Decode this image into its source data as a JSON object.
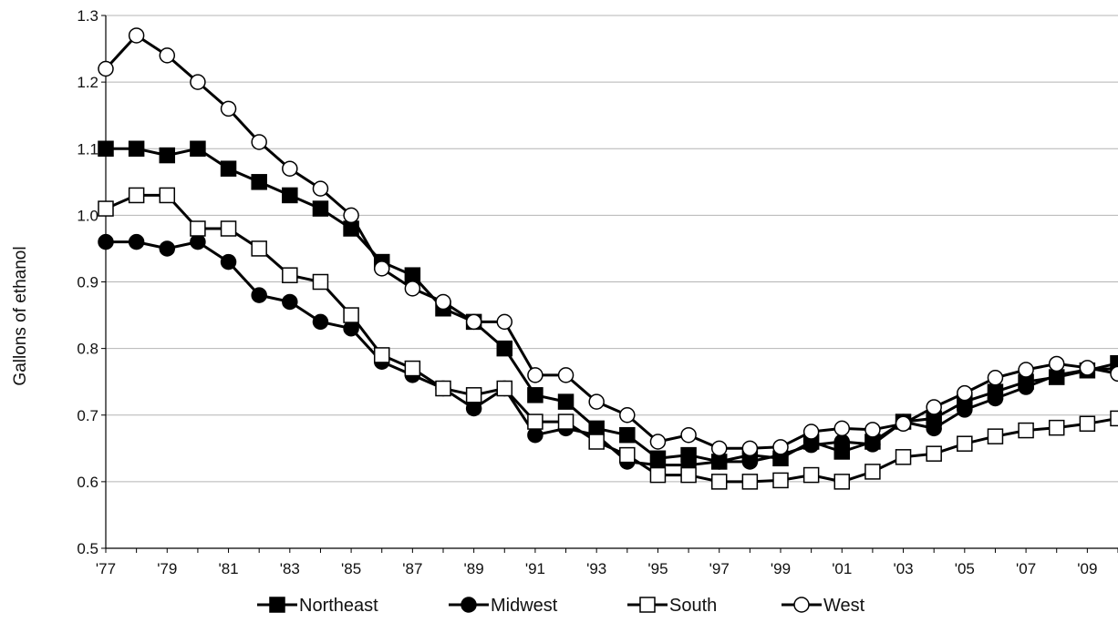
{
  "chart_data": {
    "type": "line",
    "title": "",
    "xlabel": "",
    "ylabel": "Gallons of ethanol",
    "ylim": [
      0.5,
      1.3
    ],
    "yticks": [
      "0.5",
      "0.6",
      "0.7",
      "0.8",
      "0.9",
      "1.0",
      "1.1",
      "1.2",
      "1.3"
    ],
    "xticks": [
      "'77",
      "'79",
      "'81",
      "'83",
      "'85",
      "'87",
      "'89",
      "'91",
      "'93",
      "'95",
      "'97",
      "'99",
      "'01",
      "'03",
      "'05",
      "'07",
      "'09"
    ],
    "x": [
      1977,
      1978,
      1979,
      1980,
      1981,
      1982,
      1983,
      1984,
      1985,
      1986,
      1987,
      1988,
      1989,
      1990,
      1991,
      1992,
      1993,
      1994,
      1995,
      1996,
      1997,
      1998,
      1999,
      2000,
      2001,
      2002,
      2003,
      2004,
      2005,
      2006,
      2007,
      2008,
      2009,
      2010
    ],
    "grid": "horizontal",
    "legend_position": "bottom",
    "colors": {
      "line": "#000000",
      "filled_marker": "#000000",
      "hollow_marker": "#ffffff",
      "grid": "#b4b4b4"
    },
    "series": [
      {
        "name": "Northeast",
        "marker": "filled-square",
        "values": [
          1.1,
          1.1,
          1.09,
          1.1,
          1.07,
          1.05,
          1.03,
          1.01,
          0.98,
          0.93,
          0.91,
          0.86,
          0.84,
          0.8,
          0.73,
          0.72,
          0.68,
          0.67,
          0.635,
          0.64,
          0.63,
          0.64,
          0.635,
          0.66,
          0.645,
          0.66,
          0.69,
          0.695,
          0.72,
          0.735,
          0.75,
          0.757,
          0.767,
          0.778
        ]
      },
      {
        "name": "Midwest",
        "marker": "filled-circle",
        "values": [
          0.96,
          0.96,
          0.95,
          0.96,
          0.93,
          0.88,
          0.87,
          0.84,
          0.83,
          0.78,
          0.76,
          0.74,
          0.71,
          0.74,
          0.67,
          0.68,
          0.67,
          0.63,
          0.625,
          0.625,
          0.63,
          0.63,
          0.64,
          0.655,
          0.66,
          0.656,
          0.69,
          0.68,
          0.708,
          0.725,
          0.742,
          0.76,
          0.768,
          0.77
        ]
      },
      {
        "name": "South",
        "marker": "hollow-square",
        "values": [
          1.01,
          1.03,
          1.03,
          0.98,
          0.98,
          0.95,
          0.91,
          0.9,
          0.85,
          0.79,
          0.77,
          0.74,
          0.73,
          0.74,
          0.69,
          0.69,
          0.66,
          0.64,
          0.61,
          0.61,
          0.6,
          0.6,
          0.602,
          0.61,
          0.6,
          0.615,
          0.637,
          0.642,
          0.657,
          0.668,
          0.677,
          0.681,
          0.687,
          0.695
        ]
      },
      {
        "name": "West",
        "marker": "hollow-circle",
        "values": [
          1.22,
          1.27,
          1.24,
          1.2,
          1.16,
          1.11,
          1.07,
          1.04,
          1.0,
          0.92,
          0.89,
          0.87,
          0.84,
          0.84,
          0.76,
          0.76,
          0.72,
          0.7,
          0.66,
          0.67,
          0.65,
          0.65,
          0.652,
          0.675,
          0.68,
          0.678,
          0.687,
          0.712,
          0.733,
          0.756,
          0.768,
          0.777,
          0.771,
          0.762
        ]
      }
    ]
  }
}
